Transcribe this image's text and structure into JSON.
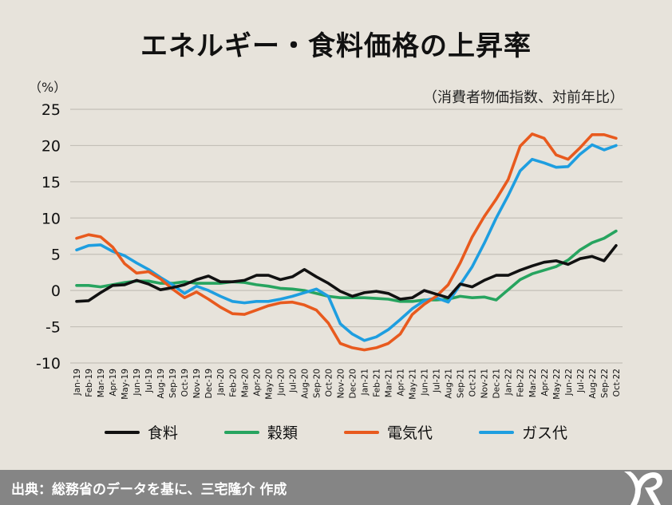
{
  "title": "エネルギー・食料価格の上昇率",
  "unit_label": "（%）",
  "subtitle": "（消費者物価指数、対前年比）",
  "footer": {
    "source": "出典：総務省のデータを基に、三宅隆介 作成",
    "logo": "MR"
  },
  "colors": {
    "background": "#e7e3db",
    "footer": "#858585",
    "grid": "#c4c0b8"
  },
  "chart_data": {
    "type": "line",
    "title": "エネルギー・食料価格の上昇率",
    "subtitle": "（消費者物価指数、対前年比）",
    "ylabel": "（%）",
    "xlabel": "",
    "ylim": [
      -10,
      25
    ],
    "yticks": [
      25,
      20,
      15,
      10,
      5,
      0,
      -5,
      -10
    ],
    "ytick_labels": [
      "25",
      "20",
      "15",
      "10",
      "5",
      "0",
      "-5",
      "-10"
    ],
    "grid": true,
    "legend_position": "bottom",
    "categories": [
      "Jan-19",
      "Feb-19",
      "Mar-19",
      "Apr-19",
      "May-19",
      "Jun-19",
      "Jul-19",
      "Aug-19",
      "Sep-19",
      "Oct-19",
      "Nov-19",
      "Dec-19",
      "Jan-20",
      "Feb-20",
      "Mar-20",
      "Apr-20",
      "May-20",
      "Jun-20",
      "Jul-20",
      "Aug-20",
      "Sep-20",
      "Oct-20",
      "Nov-20",
      "Dec-20",
      "Jan-21",
      "Feb-21",
      "Mar-21",
      "Apr-21",
      "May-21",
      "Jun-21",
      "Jul-21",
      "Aug-21",
      "Sep-21",
      "Oct-21",
      "Nov-21",
      "Dec-21",
      "Jan-22",
      "Feb-22",
      "Mar-22",
      "Apr-22",
      "May-22",
      "Jun-22",
      "Jul-22",
      "Aug-22",
      "Sep-22",
      "Oct-22"
    ],
    "series": [
      {
        "name": "食料",
        "color": "#111111",
        "values": [
          -1.5,
          -1.4,
          -0.3,
          0.7,
          0.8,
          1.4,
          0.9,
          0.1,
          0.4,
          0.8,
          1.5,
          2.0,
          1.2,
          1.2,
          1.4,
          2.1,
          2.1,
          1.5,
          1.9,
          2.9,
          1.9,
          1.0,
          -0.1,
          -0.8,
          -0.3,
          -0.1,
          -0.4,
          -1.2,
          -1.0,
          0.0,
          -0.5,
          -1.0,
          0.9,
          0.5,
          1.4,
          2.1,
          2.1,
          2.8,
          3.4,
          3.9,
          4.1,
          3.6,
          4.4,
          4.7,
          4.1,
          6.2
        ]
      },
      {
        "name": "穀類",
        "color": "#27a45f",
        "values": [
          0.7,
          0.7,
          0.5,
          0.8,
          1.1,
          1.3,
          1.3,
          1.0,
          1.0,
          1.2,
          1.0,
          1.0,
          1.0,
          1.2,
          1.1,
          0.8,
          0.6,
          0.3,
          0.2,
          0.0,
          -0.4,
          -0.8,
          -1.0,
          -1.0,
          -1.0,
          -1.1,
          -1.2,
          -1.5,
          -1.5,
          -1.3,
          -1.3,
          -1.2,
          -0.8,
          -1.0,
          -0.9,
          -1.3,
          0.1,
          1.5,
          2.3,
          2.8,
          3.3,
          4.2,
          5.6,
          6.6,
          7.2,
          8.2
        ]
      },
      {
        "name": "電気代",
        "color": "#e85a1e",
        "values": [
          7.2,
          7.7,
          7.4,
          6.0,
          3.7,
          2.4,
          2.6,
          1.6,
          0.2,
          -1.0,
          -0.2,
          -1.2,
          -2.3,
          -3.2,
          -3.3,
          -2.7,
          -2.1,
          -1.7,
          -1.6,
          -2.0,
          -2.7,
          -4.5,
          -7.3,
          -7.9,
          -8.2,
          -7.9,
          -7.3,
          -6.0,
          -3.3,
          -1.9,
          -0.8,
          0.8,
          3.8,
          7.4,
          10.2,
          12.6,
          15.3,
          19.9,
          21.6,
          21.0,
          18.7,
          18.1,
          19.7,
          21.5,
          21.5,
          21.0
        ]
      },
      {
        "name": "ガス代",
        "color": "#1e9ee0",
        "values": [
          5.6,
          6.2,
          6.3,
          5.4,
          4.8,
          3.8,
          2.9,
          1.8,
          0.8,
          -0.4,
          0.6,
          0.0,
          -0.8,
          -1.5,
          -1.7,
          -1.5,
          -1.5,
          -1.2,
          -0.8,
          -0.3,
          0.2,
          -0.8,
          -4.6,
          -6.0,
          -6.9,
          -6.4,
          -5.4,
          -4.0,
          -2.5,
          -1.4,
          -1.0,
          -1.6,
          0.8,
          3.3,
          6.5,
          10.0,
          13.1,
          16.5,
          18.1,
          17.6,
          17.0,
          17.1,
          18.8,
          20.1,
          19.4,
          20.0
        ]
      }
    ]
  }
}
